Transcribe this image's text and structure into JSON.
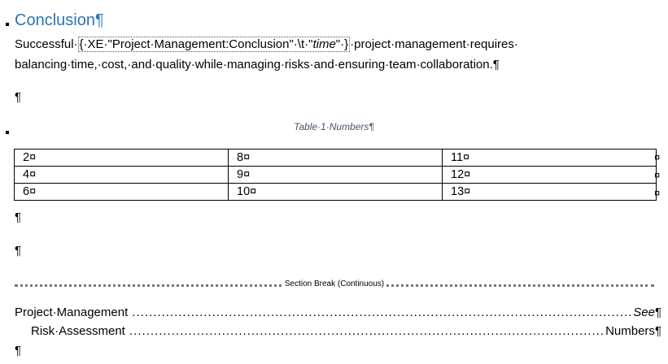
{
  "heading": "Conclusion¶",
  "paragraph": {
    "before": "Successful·",
    "field": "{·XE·\"Project·Management:Conclusion\"·\\t·\"",
    "field_italic": "time",
    "field_end": "\"·}",
    "after": "·project·management·requires·",
    "line2": "balancing·time,·cost,·and·quality·while·managing·risks·and·ensuring·team·collaboration.¶"
  },
  "empty_para": "¶",
  "caption": "Table·1·Numbers¶",
  "table": {
    "rows": [
      [
        "2¤",
        "8¤",
        "11¤"
      ],
      [
        "4¤",
        "9¤",
        "12¤"
      ],
      [
        "6¤",
        "10¤",
        "13¤"
      ]
    ],
    "row_end": "¤"
  },
  "section_break": "Section Break (Continuous)",
  "index": [
    {
      "entry": "Project·Management",
      "ref": "See",
      "ref_italic": true,
      "end": "¶"
    },
    {
      "entry": "Risk·Assessment",
      "ref": "Numbers",
      "ref_italic": false,
      "end": "¶"
    }
  ],
  "heading_color": "#2e74b5"
}
